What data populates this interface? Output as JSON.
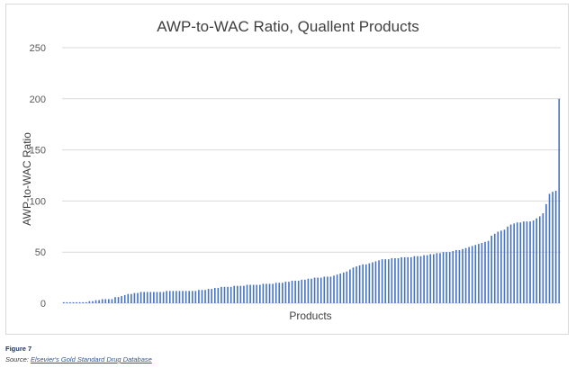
{
  "figure_label": "Figure 7",
  "source": {
    "prefix": "Source:",
    "link_text": "Elsevier's Gold Standard Drug Database"
  },
  "chart_data": {
    "type": "bar",
    "title": "AWP-to-WAC Ratio, Quallent Products",
    "xlabel": "Products",
    "ylabel": "AWP-to-WAC Ratio",
    "ylim": [
      0,
      250
    ],
    "yticks": [
      "0",
      "50",
      "100",
      "150",
      "200",
      "250"
    ],
    "grid": true,
    "legend": "none",
    "bar_color": "#4472c4",
    "values": [
      1,
      1,
      1,
      1,
      1,
      1,
      1,
      1,
      2,
      2,
      3,
      3,
      4,
      4,
      4,
      4,
      6,
      6,
      7,
      8,
      9,
      9,
      10,
      10,
      11,
      11,
      11,
      11,
      11,
      11,
      11,
      11,
      12,
      12,
      12,
      12,
      12,
      12,
      12,
      12,
      12,
      12,
      13,
      13,
      13,
      14,
      14,
      15,
      15,
      16,
      16,
      16,
      16,
      17,
      17,
      17,
      17,
      18,
      18,
      18,
      18,
      18,
      19,
      19,
      19,
      19,
      20,
      20,
      20,
      21,
      21,
      22,
      22,
      22,
      23,
      23,
      24,
      24,
      25,
      25,
      25,
      26,
      26,
      26,
      27,
      28,
      29,
      30,
      31,
      33,
      35,
      36,
      37,
      38,
      38,
      39,
      40,
      41,
      42,
      43,
      43,
      43,
      44,
      44,
      44,
      45,
      45,
      45,
      45,
      46,
      46,
      46,
      47,
      47,
      48,
      48,
      49,
      49,
      50,
      50,
      50,
      51,
      52,
      52,
      53,
      54,
      55,
      56,
      57,
      58,
      59,
      60,
      61,
      66,
      68,
      70,
      71,
      72,
      75,
      77,
      78,
      79,
      79,
      80,
      80,
      80,
      81,
      83,
      85,
      88,
      97,
      107,
      109,
      110,
      200
    ]
  }
}
